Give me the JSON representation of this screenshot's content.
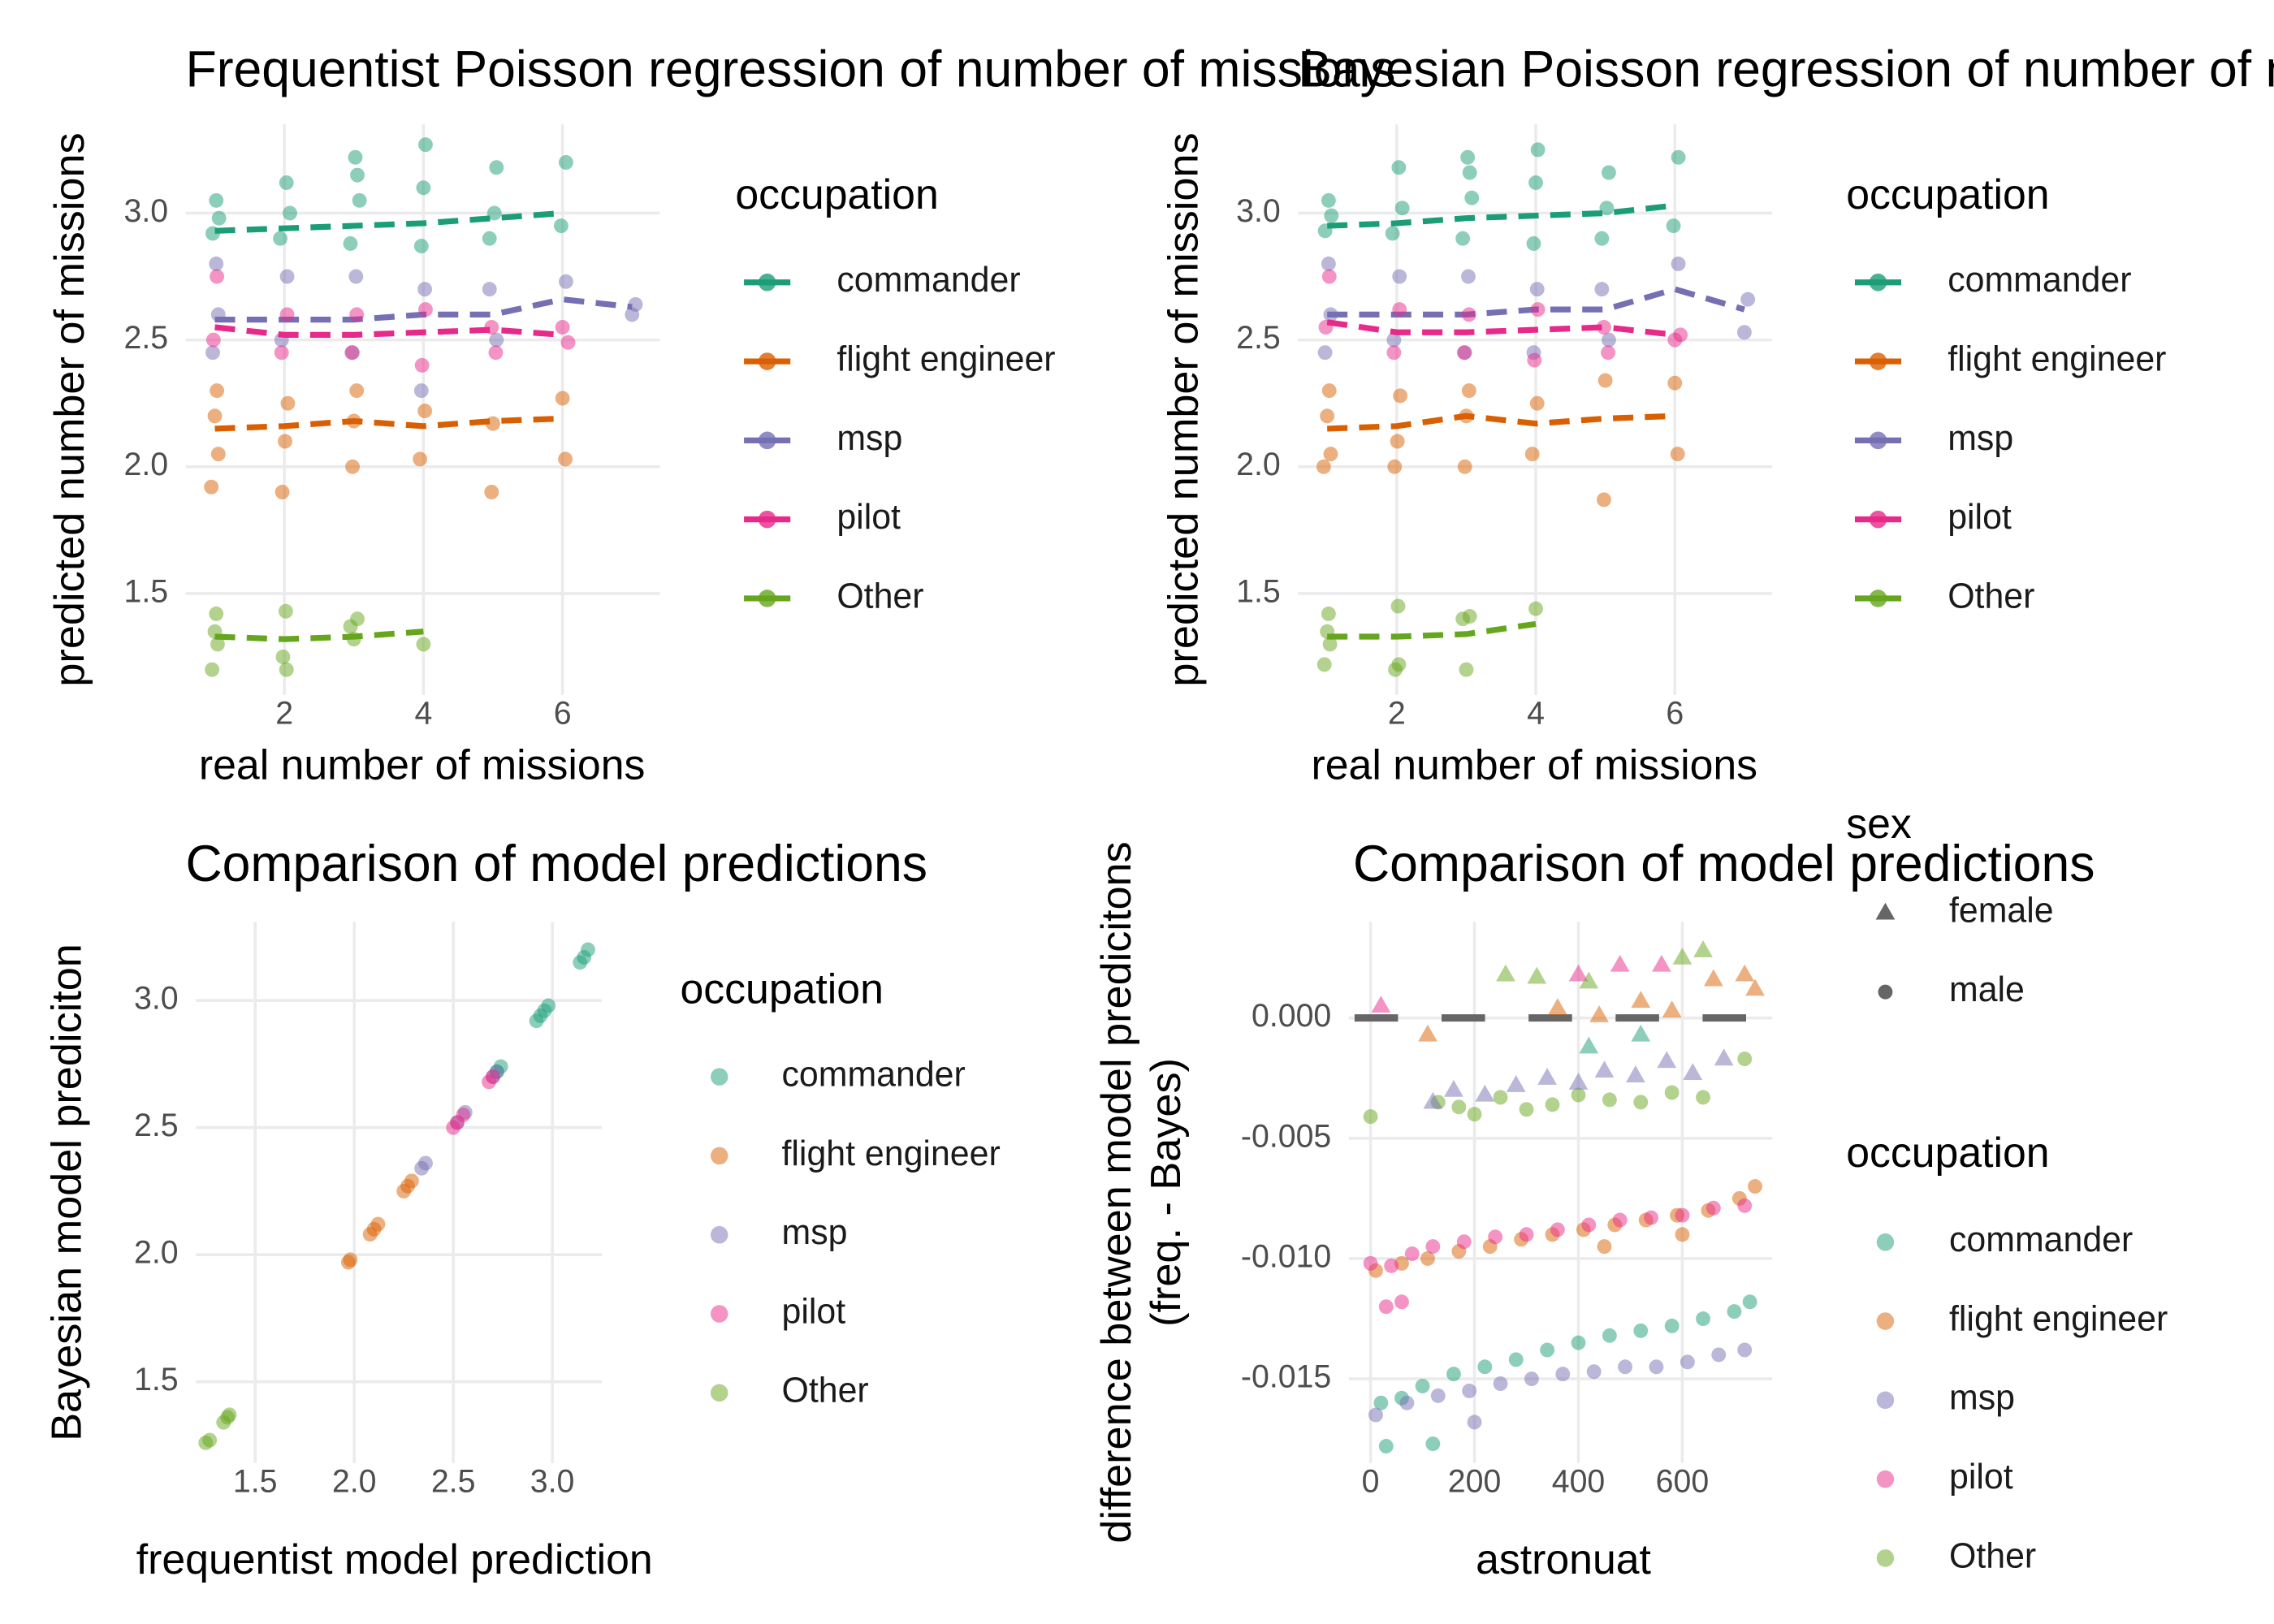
{
  "chart_data": [
    {
      "type": "scatter",
      "title": "Frequentist Poisson regression of number of missions",
      "x_label": "real number of missions",
      "y_label": "predicted number of missions",
      "legend_title": "occupation",
      "xlim": [
        0.58,
        7.4
      ],
      "ylim": [
        1.1,
        3.35
      ],
      "xticks": [
        2,
        4,
        6
      ],
      "yticks": [
        1.5,
        {
          "value": 2.0,
          "label": "2.0"
        },
        2.5,
        {
          "value": 3.0,
          "label": "3.0"
        }
      ],
      "grid": true,
      "series": [
        {
          "name": "commander",
          "color": "#1b9e77",
          "x": [
            0.97,
            1.02,
            1.06,
            1.94,
            2.03,
            2.08,
            2.95,
            3.02,
            3.08,
            3.05,
            3.97,
            4.03,
            4.0,
            4.95,
            5.05,
            5.02,
            5.98,
            6.05
          ],
          "y": [
            2.92,
            3.05,
            2.98,
            2.9,
            3.12,
            3.0,
            2.88,
            3.22,
            3.05,
            3.15,
            2.87,
            3.27,
            3.1,
            2.9,
            3.18,
            3.0,
            2.95,
            3.2
          ],
          "trend_x": [
            1,
            2,
            3,
            4,
            5,
            6
          ],
          "trend_y": [
            2.93,
            2.94,
            2.95,
            2.96,
            2.98,
            3.0
          ]
        },
        {
          "name": "flight engineer",
          "color": "#d95f02",
          "x": [
            0.95,
            1.0,
            1.05,
            1.03,
            1.97,
            2.05,
            2.01,
            2.98,
            3.04,
            3.0,
            3.95,
            4.02,
            4.98,
            5.0,
            6.0,
            6.04
          ],
          "y": [
            1.92,
            2.2,
            2.05,
            2.3,
            1.9,
            2.25,
            2.1,
            2.0,
            2.3,
            2.18,
            2.03,
            2.22,
            1.9,
            2.17,
            2.27,
            2.03
          ],
          "trend_x": [
            1,
            2,
            3,
            4,
            5,
            6
          ],
          "trend_y": [
            2.15,
            2.16,
            2.18,
            2.16,
            2.18,
            2.19
          ]
        },
        {
          "name": "msp",
          "color": "#7570b3",
          "x": [
            0.97,
            1.02,
            1.05,
            1.96,
            2.04,
            2.98,
            3.03,
            3.97,
            4.02,
            4.95,
            5.05,
            6.05,
            7.0,
            7.05
          ],
          "y": [
            2.45,
            2.8,
            2.6,
            2.5,
            2.75,
            2.45,
            2.75,
            2.3,
            2.7,
            2.7,
            2.5,
            2.73,
            2.6,
            2.64
          ],
          "trend_x": [
            1,
            2,
            3,
            4,
            5,
            6,
            7
          ],
          "trend_y": [
            2.58,
            2.58,
            2.58,
            2.6,
            2.6,
            2.66,
            2.63
          ]
        },
        {
          "name": "pilot",
          "color": "#e7298a",
          "x": [
            0.98,
            1.03,
            1.96,
            2.04,
            2.97,
            3.04,
            3.98,
            4.03,
            4.98,
            5.04,
            6.0,
            6.08
          ],
          "y": [
            2.5,
            2.75,
            2.45,
            2.6,
            2.45,
            2.6,
            2.4,
            2.62,
            2.55,
            2.45,
            2.55,
            2.49
          ],
          "trend_x": [
            1,
            2,
            3,
            4,
            5,
            6
          ],
          "trend_y": [
            2.55,
            2.52,
            2.52,
            2.53,
            2.54,
            2.52
          ]
        },
        {
          "name": "Other",
          "color": "#66a61e",
          "x": [
            0.96,
            1.0,
            1.04,
            1.02,
            1.98,
            2.02,
            2.03,
            2.95,
            3.05,
            3.0,
            4.0
          ],
          "y": [
            1.2,
            1.35,
            1.3,
            1.42,
            1.25,
            1.43,
            1.2,
            1.37,
            1.4,
            1.32,
            1.3
          ],
          "trend_x": [
            1,
            2,
            3,
            4
          ],
          "trend_y": [
            1.33,
            1.32,
            1.33,
            1.35
          ]
        }
      ]
    },
    {
      "type": "scatter",
      "title": "Bayesian Poisson regression of number of missions",
      "x_label": "real number of missions",
      "y_label": "predicted number of missions",
      "legend_title": "occupation",
      "xlim": [
        0.58,
        7.4
      ],
      "ylim": [
        1.1,
        3.35
      ],
      "xticks": [
        2,
        4,
        6
      ],
      "yticks": [
        1.5,
        {
          "value": 2.0,
          "label": "2.0"
        },
        2.5,
        {
          "value": 3.0,
          "label": "3.0"
        }
      ],
      "grid": true,
      "series": [
        {
          "name": "commander",
          "color": "#1b9e77",
          "x": [
            0.97,
            1.02,
            1.06,
            1.94,
            2.03,
            2.08,
            2.95,
            3.02,
            3.08,
            3.05,
            3.97,
            4.03,
            4.0,
            4.95,
            5.05,
            5.02,
            5.98,
            6.05
          ],
          "y": [
            2.93,
            3.05,
            2.99,
            2.92,
            3.18,
            3.02,
            2.9,
            3.22,
            3.06,
            3.16,
            2.88,
            3.25,
            3.12,
            2.9,
            3.16,
            3.02,
            2.95,
            3.22
          ],
          "trend_x": [
            1,
            2,
            3,
            4,
            5,
            6
          ],
          "trend_y": [
            2.95,
            2.96,
            2.98,
            2.99,
            3.0,
            3.03
          ]
        },
        {
          "name": "flight engineer",
          "color": "#d95f02",
          "x": [
            0.95,
            1.0,
            1.05,
            1.03,
            1.97,
            2.05,
            2.01,
            2.98,
            3.04,
            3.0,
            3.95,
            4.02,
            4.98,
            5.0,
            6.0,
            6.04
          ],
          "y": [
            2.0,
            2.2,
            2.05,
            2.3,
            2.0,
            2.28,
            2.1,
            2.0,
            2.3,
            2.2,
            2.05,
            2.25,
            1.87,
            2.34,
            2.33,
            2.05
          ],
          "trend_x": [
            1,
            2,
            3,
            4,
            5,
            6
          ],
          "trend_y": [
            2.15,
            2.16,
            2.2,
            2.17,
            2.19,
            2.2
          ]
        },
        {
          "name": "msp",
          "color": "#7570b3",
          "x": [
            0.97,
            1.02,
            1.05,
            1.96,
            2.04,
            2.98,
            3.03,
            3.97,
            4.02,
            4.95,
            5.05,
            6.05,
            7.0,
            7.05
          ],
          "y": [
            2.45,
            2.8,
            2.6,
            2.5,
            2.75,
            2.45,
            2.75,
            2.45,
            2.7,
            2.7,
            2.5,
            2.8,
            2.53,
            2.66
          ],
          "trend_x": [
            1,
            2,
            3,
            4,
            5,
            6,
            7
          ],
          "trend_y": [
            2.6,
            2.6,
            2.6,
            2.62,
            2.62,
            2.7,
            2.62
          ]
        },
        {
          "name": "pilot",
          "color": "#e7298a",
          "x": [
            0.98,
            1.03,
            1.96,
            2.04,
            2.97,
            3.04,
            3.98,
            4.03,
            4.98,
            5.04,
            6.0,
            6.08
          ],
          "y": [
            2.55,
            2.75,
            2.45,
            2.62,
            2.45,
            2.6,
            2.42,
            2.62,
            2.55,
            2.45,
            2.5,
            2.52
          ],
          "trend_x": [
            1,
            2,
            3,
            4,
            5,
            6
          ],
          "trend_y": [
            2.57,
            2.53,
            2.53,
            2.54,
            2.55,
            2.52
          ]
        },
        {
          "name": "Other",
          "color": "#66a61e",
          "x": [
            0.96,
            1.0,
            1.04,
            1.02,
            1.98,
            2.02,
            2.03,
            2.95,
            3.05,
            3.0,
            4.0
          ],
          "y": [
            1.22,
            1.35,
            1.3,
            1.42,
            1.2,
            1.45,
            1.22,
            1.4,
            1.41,
            1.2,
            1.44
          ],
          "trend_x": [
            1,
            2,
            3,
            4
          ],
          "trend_y": [
            1.33,
            1.33,
            1.34,
            1.38
          ]
        }
      ]
    },
    {
      "type": "scatter",
      "title": "Comparison of model predictions",
      "x_label": "frequentist model prediction",
      "y_label": "Bayesian model prediciton",
      "legend_title": "occupation",
      "xlim": [
        1.2,
        3.25
      ],
      "ylim": [
        1.18,
        3.31
      ],
      "xticks": [
        1.5,
        {
          "value": 2.0,
          "label": "2.0"
        },
        2.5,
        {
          "value": 3.0,
          "label": "3.0"
        }
      ],
      "yticks": [
        1.5,
        {
          "value": 2.0,
          "label": "2.0"
        },
        2.5,
        {
          "value": 3.0,
          "label": "3.0"
        }
      ],
      "grid": true,
      "series": [
        {
          "name": "commander",
          "color": "#1b9e77",
          "x": [
            2.92,
            2.94,
            2.96,
            2.98,
            3.14,
            3.16,
            3.18,
            2.72,
            2.74
          ],
          "y": [
            2.92,
            2.94,
            2.96,
            2.98,
            3.15,
            3.17,
            3.2,
            2.72,
            2.74
          ]
        },
        {
          "name": "flight engineer",
          "color": "#d95f02",
          "x": [
            1.97,
            1.98,
            2.08,
            2.1,
            2.12,
            2.25,
            2.27,
            2.29
          ],
          "y": [
            1.97,
            1.98,
            2.08,
            2.1,
            2.12,
            2.25,
            2.27,
            2.29
          ]
        },
        {
          "name": "msp",
          "color": "#7570b3",
          "x": [
            2.34,
            2.36,
            2.52,
            2.56,
            2.7,
            2.72
          ],
          "y": [
            2.34,
            2.36,
            2.52,
            2.56,
            2.7,
            2.72
          ]
        },
        {
          "name": "pilot",
          "color": "#e7298a",
          "x": [
            2.5,
            2.52,
            2.55,
            2.68,
            2.7
          ],
          "y": [
            2.5,
            2.52,
            2.55,
            2.68,
            2.7
          ]
        },
        {
          "name": "Other",
          "color": "#66a61e",
          "x": [
            1.25,
            1.27,
            1.34,
            1.36,
            1.37
          ],
          "y": [
            1.26,
            1.27,
            1.34,
            1.36,
            1.37
          ]
        }
      ]
    },
    {
      "type": "shape-scatter",
      "title": "Comparison of model predictions",
      "x_label": "astronuat",
      "y_label": [
        "difference between model predicitons",
        "(freq. - Bayes)"
      ],
      "xlim": [
        -42,
        773
      ],
      "ylim": [
        -0.0185,
        0.004
      ],
      "xticks": [
        0,
        200,
        400,
        600
      ],
      "yticks": [
        {
          "value": -0.015,
          "label": "-0.015"
        },
        {
          "value": -0.01,
          "label": "-0.010"
        },
        {
          "value": -0.005,
          "label": "-0.005"
        },
        {
          "value": 0,
          "label": "0.000"
        }
      ],
      "grid": true,
      "reference_line": 0,
      "legends": [
        {
          "title": "sex",
          "items": [
            {
              "name": "female",
              "shape": "triangle"
            },
            {
              "name": "male",
              "shape": "circle"
            }
          ]
        },
        {
          "title": "occupation",
          "items": [
            {
              "name": "commander",
              "color": "#1b9e77"
            },
            {
              "name": "flight engineer",
              "color": "#d95f02"
            },
            {
              "name": "msp",
              "color": "#7570b3"
            },
            {
              "name": "pilot",
              "color": "#e7298a"
            },
            {
              "name": "Other",
              "color": "#66a61e"
            }
          ]
        }
      ],
      "series": [
        {
          "occupation": 0,
          "sex": 1,
          "x": [
            20,
            60,
            100,
            160,
            220,
            280,
            340,
            400,
            460,
            520,
            580,
            640,
            700,
            730,
            30,
            120
          ],
          "y": [
            -0.016,
            -0.0158,
            -0.0153,
            -0.0148,
            -0.0145,
            -0.0142,
            -0.0138,
            -0.0135,
            -0.0132,
            -0.013,
            -0.0128,
            -0.0125,
            -0.0122,
            -0.0118,
            -0.0178,
            -0.0177
          ]
        },
        {
          "occupation": 1,
          "sex": 1,
          "x": [
            10,
            60,
            110,
            170,
            230,
            290,
            350,
            410,
            470,
            530,
            590,
            650,
            710,
            740,
            450,
            600
          ],
          "y": [
            -0.0105,
            -0.0102,
            -0.01,
            -0.0097,
            -0.0095,
            -0.0092,
            -0.009,
            -0.0088,
            -0.0086,
            -0.0084,
            -0.0082,
            -0.008,
            -0.0075,
            -0.007,
            -0.0095,
            -0.009
          ]
        },
        {
          "occupation": 2,
          "sex": 1,
          "x": [
            10,
            70,
            130,
            190,
            250,
            310,
            370,
            430,
            490,
            550,
            610,
            670,
            720,
            200
          ],
          "y": [
            -0.0165,
            -0.016,
            -0.0157,
            -0.0155,
            -0.0152,
            -0.015,
            -0.0148,
            -0.0147,
            -0.0145,
            -0.0145,
            -0.0143,
            -0.014,
            -0.0138,
            -0.0168
          ]
        },
        {
          "occupation": 3,
          "sex": 1,
          "x": [
            0,
            40,
            80,
            120,
            180,
            240,
            300,
            360,
            420,
            480,
            540,
            600,
            660,
            720,
            30,
            60
          ],
          "y": [
            -0.0102,
            -0.0103,
            -0.0098,
            -0.0095,
            -0.0093,
            -0.0091,
            -0.009,
            -0.0088,
            -0.0086,
            -0.0084,
            -0.0083,
            -0.0082,
            -0.0079,
            -0.0078,
            -0.012,
            -0.0118
          ]
        },
        {
          "occupation": 4,
          "sex": 1,
          "x": [
            0,
            130,
            170,
            200,
            250,
            300,
            350,
            400,
            460,
            520,
            580,
            640,
            720
          ],
          "y": [
            -0.0041,
            -0.0035,
            -0.0037,
            -0.004,
            -0.0033,
            -0.0038,
            -0.0036,
            -0.0032,
            -0.0034,
            -0.0035,
            -0.0031,
            -0.0033,
            -0.0017
          ]
        },
        {
          "occupation": 2,
          "sex": 0,
          "x": [
            120,
            160,
            220,
            280,
            340,
            400,
            450,
            510,
            570,
            620,
            680
          ],
          "y": [
            -0.0035,
            -0.003,
            -0.0032,
            -0.0028,
            -0.0025,
            -0.0027,
            -0.0022,
            -0.0024,
            -0.0018,
            -0.0023,
            -0.0017
          ]
        },
        {
          "occupation": 0,
          "sex": 0,
          "x": [
            420,
            520
          ],
          "y": [
            -0.0012,
            -0.0007
          ]
        },
        {
          "occupation": 1,
          "sex": 0,
          "x": [
            110,
            360,
            440,
            520,
            580,
            660,
            720,
            740
          ],
          "y": [
            -0.0007,
            0.0004,
            0.0001,
            0.0007,
            0.0003,
            0.0016,
            0.0018,
            0.0012
          ]
        },
        {
          "occupation": 3,
          "sex": 0,
          "x": [
            20,
            400,
            480,
            560
          ],
          "y": [
            0.0005,
            0.0018,
            0.0022,
            0.0022
          ]
        },
        {
          "occupation": 4,
          "sex": 0,
          "x": [
            260,
            320,
            420,
            600,
            640
          ],
          "y": [
            0.0018,
            0.0017,
            0.0015,
            0.0025,
            0.0028
          ]
        }
      ]
    }
  ]
}
